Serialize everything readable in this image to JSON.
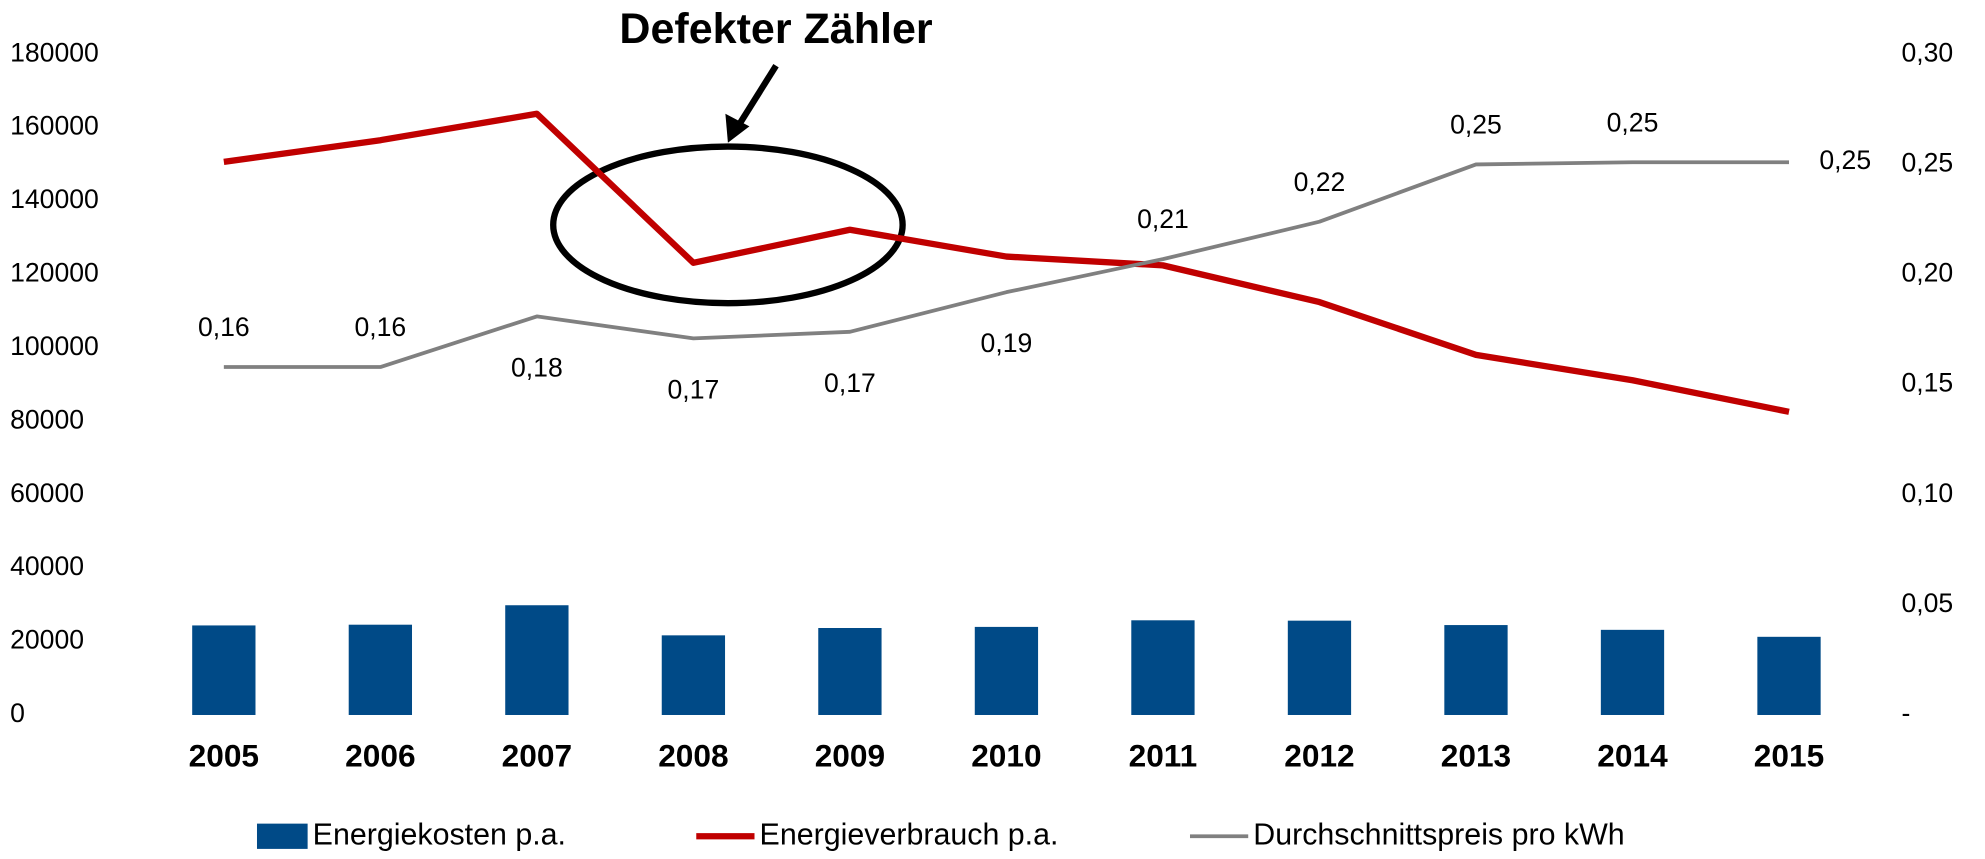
{
  "chart_data": {
    "type": "bar_line_combo",
    "annotation": "Defekter Zähler",
    "categories": [
      "2005",
      "2006",
      "2007",
      "2008",
      "2009",
      "2010",
      "2011",
      "2012",
      "2013",
      "2014",
      "2015"
    ],
    "series": [
      {
        "name": "Energiekosten p.a.",
        "type": "bar",
        "color": "#004a87",
        "values": [
          24400,
          24600,
          29900,
          21700,
          23700,
          24000,
          25800,
          25700,
          24500,
          23200,
          21300
        ]
      },
      {
        "name": "Energieverbrauch p.a.",
        "type": "line",
        "color": "#c00000",
        "values": [
          150700,
          156600,
          163800,
          123200,
          132200,
          124900,
          122500,
          112500,
          98100,
          91200,
          82600
        ]
      },
      {
        "name": "Durchschnittspreis pro kWh",
        "type": "line",
        "color": "#808080",
        "axis": "y2",
        "values": [
          0.158,
          0.158,
          0.181,
          0.171,
          0.174,
          0.192,
          0.207,
          0.224,
          0.25,
          0.251,
          0.251
        ],
        "value_labels": [
          "0,16",
          "0,16",
          "0,18",
          "0,17",
          "0,17",
          "0,19",
          "0,21",
          "0,22",
          "0,25",
          "0,25",
          "0,25"
        ]
      }
    ],
    "ylim": [
      0,
      180000
    ],
    "yticks": [
      0,
      20000,
      40000,
      60000,
      80000,
      100000,
      120000,
      140000,
      160000,
      180000
    ],
    "y2lim": [
      0,
      0.3
    ],
    "y2ticks": [
      {
        "value": 0,
        "label": "-"
      },
      {
        "value": 0.05,
        "label": "0,05"
      },
      {
        "value": 0.1,
        "label": "0,10"
      },
      {
        "value": 0.15,
        "label": "0,15"
      },
      {
        "value": 0.2,
        "label": "0,20"
      },
      {
        "value": 0.25,
        "label": "0,25"
      },
      {
        "value": 0.3,
        "label": "0,30"
      }
    ],
    "legend": "bottom"
  }
}
